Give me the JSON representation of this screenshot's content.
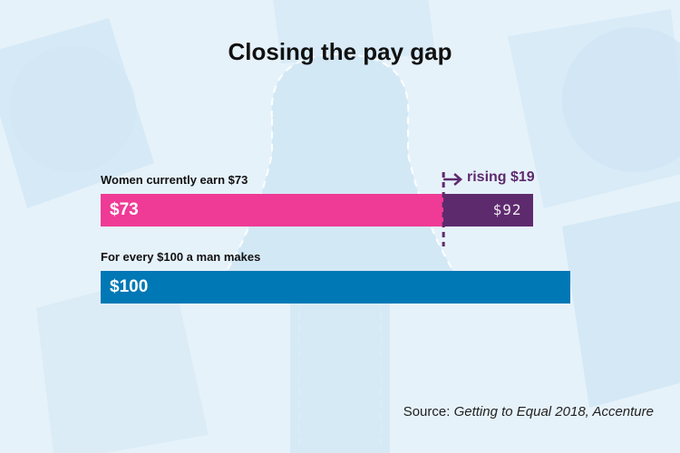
{
  "colors": {
    "women": "#ef3a96",
    "target": "#5e2a6e",
    "men": "#0078b5",
    "background": "#e6f2fa"
  },
  "chart_data": {
    "type": "bar",
    "title": "Closing the pay gap",
    "series": [
      {
        "name": "Women currently earn $73",
        "value": 73,
        "label": "$73",
        "target": 92,
        "target_label": "$92"
      },
      {
        "name": "For every $100 a man makes",
        "value": 100,
        "label": "$100"
      }
    ],
    "annotation": "rising $19",
    "source_prefix": "Source: ",
    "source_title": "Getting to Equal 2018, Accenture",
    "xlim": [
      0,
      100
    ]
  }
}
